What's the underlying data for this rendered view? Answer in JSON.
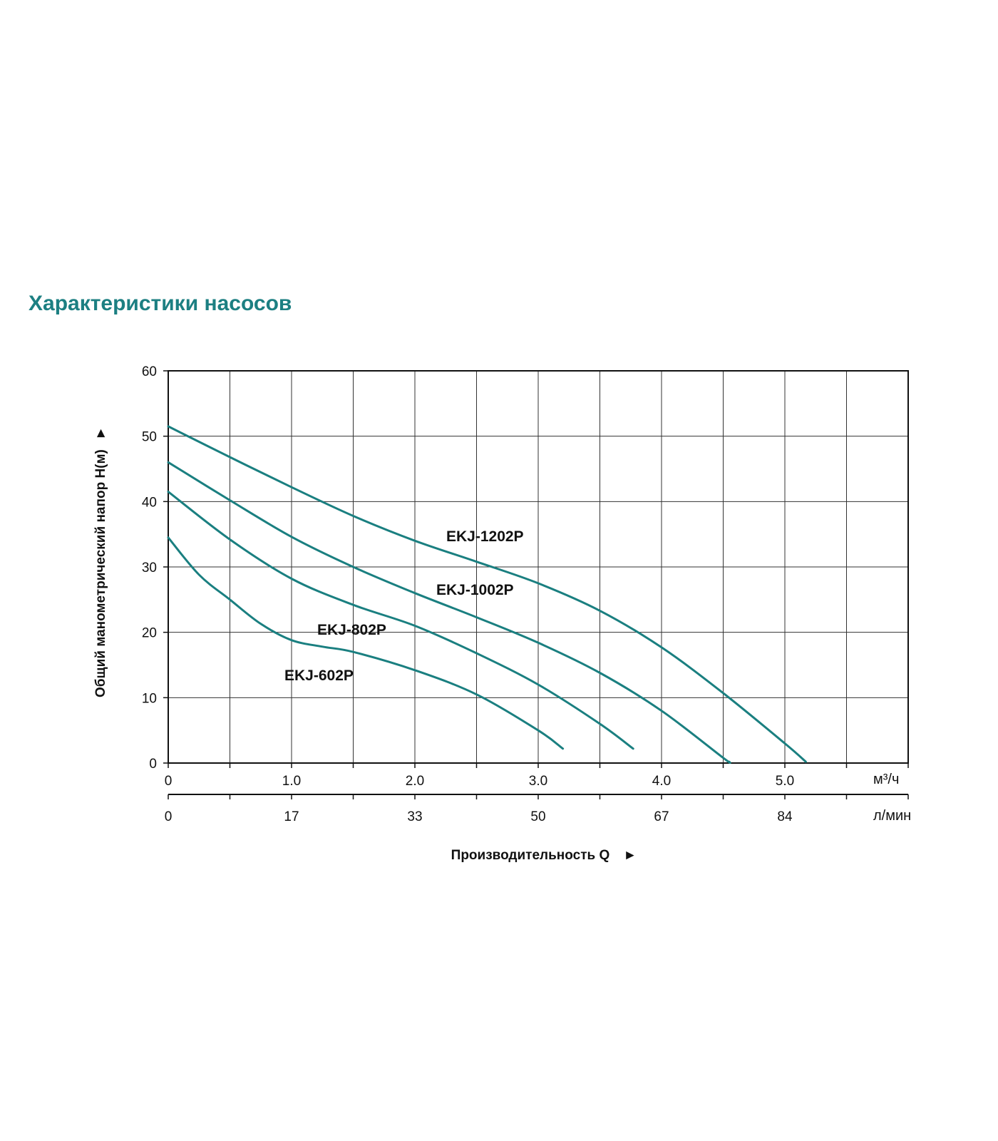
{
  "title": "Характеристики насосов",
  "chart_data": {
    "type": "line",
    "title": "Характеристики насосов",
    "ylabel": "Общий манометрический напор H(м)",
    "ylabel_arrow": "►",
    "xlabel": "Производительность Q",
    "xlabel_arrow": "►",
    "x_unit": "м³/ч",
    "x2_unit": "л/мин",
    "xlim": [
      0,
      6.0
    ],
    "ylim": [
      0,
      60
    ],
    "x_ticks": [
      "0",
      "1.0",
      "2.0",
      "3.0",
      "4.0",
      "5.0"
    ],
    "x2_ticks": [
      "0",
      "17",
      "33",
      "50",
      "67",
      "84"
    ],
    "y_ticks": [
      "0",
      "10",
      "20",
      "30",
      "40",
      "50",
      "60"
    ],
    "grid": true,
    "line_color": "#1a7f80",
    "series": [
      {
        "name": "EKJ-1202P",
        "x": [
          0,
          0.5,
          1.0,
          1.5,
          2.0,
          2.5,
          3.0,
          3.5,
          4.0,
          4.5,
          5.0,
          5.17
        ],
        "y": [
          51.5,
          46.8,
          42.2,
          37.8,
          34.0,
          30.8,
          27.5,
          23.3,
          17.7,
          10.7,
          3.0,
          0.2
        ]
      },
      {
        "name": "EKJ-1002P",
        "x": [
          0,
          0.5,
          1.0,
          1.5,
          2.0,
          2.5,
          3.0,
          3.5,
          4.0,
          4.5,
          4.55
        ],
        "y": [
          46.0,
          40.2,
          34.6,
          30.0,
          26.0,
          22.3,
          18.4,
          13.8,
          8.0,
          0.8,
          0.2
        ]
      },
      {
        "name": "EKJ-802P",
        "x": [
          0,
          0.5,
          1.0,
          1.5,
          2.0,
          2.5,
          3.0,
          3.5,
          3.77
        ],
        "y": [
          41.5,
          34.2,
          28.2,
          24.2,
          21.0,
          16.8,
          12.0,
          6.0,
          2.2
        ]
      },
      {
        "name": "EKJ-602P",
        "x": [
          0,
          0.25,
          0.5,
          0.75,
          1.0,
          1.25,
          1.5,
          2.0,
          2.5,
          3.0,
          3.2
        ],
        "y": [
          34.5,
          28.8,
          25.0,
          21.3,
          18.8,
          17.8,
          17.0,
          14.2,
          10.5,
          5.0,
          2.2
        ]
      }
    ],
    "series_labels": [
      "EKJ-1202P",
      "EKJ-1002P",
      "EKJ-802P",
      "EKJ-602P"
    ]
  }
}
